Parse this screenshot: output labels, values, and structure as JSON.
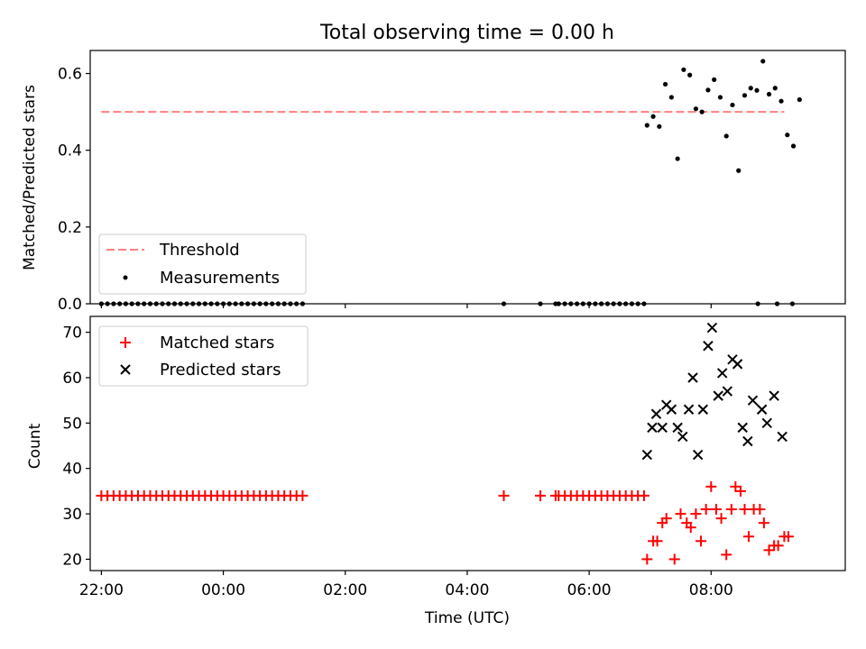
{
  "figure_title": "Total observing time = 0.00 h",
  "xlabel": "Time (UTC)",
  "chart_data": [
    {
      "type": "scatter",
      "title": "Total observing time = 0.00 h",
      "xlabel": "",
      "ylabel": "Matched/Predicted stars",
      "xlim": [
        "21:49",
        "10:12"
      ],
      "ylim": [
        0,
        0.66
      ],
      "yticks": [
        0.0,
        0.2,
        0.4,
        0.6
      ],
      "ytick_labels": [
        "0.0",
        "0.2",
        "0.4",
        "0.6"
      ],
      "xticks": [
        "22:00",
        "00:00",
        "02:00",
        "04:00",
        "06:00",
        "08:00"
      ],
      "grid": false,
      "legend_position": "lower-left",
      "legend": [
        {
          "label": "Threshold",
          "style": "dashed-line",
          "color": "#ff7f7f"
        },
        {
          "label": "Measurements",
          "style": "dot",
          "color": "#000000"
        }
      ],
      "threshold": {
        "value": 0.5,
        "x_start": "22:00",
        "x_end": "09:12",
        "color": "#ff7f7f"
      },
      "series": [
        {
          "name": "Measurements",
          "color": "#000000",
          "points": [
            [
              "22:00",
              0
            ],
            [
              "22:06",
              0
            ],
            [
              "22:12",
              0
            ],
            [
              "22:18",
              0
            ],
            [
              "22:24",
              0
            ],
            [
              "22:30",
              0
            ],
            [
              "22:36",
              0
            ],
            [
              "22:42",
              0
            ],
            [
              "22:48",
              0
            ],
            [
              "22:54",
              0
            ],
            [
              "23:00",
              0
            ],
            [
              "23:06",
              0
            ],
            [
              "23:12",
              0
            ],
            [
              "23:18",
              0
            ],
            [
              "23:24",
              0
            ],
            [
              "23:30",
              0
            ],
            [
              "23:36",
              0
            ],
            [
              "23:42",
              0
            ],
            [
              "23:48",
              0
            ],
            [
              "23:54",
              0
            ],
            [
              "00:00",
              0
            ],
            [
              "00:06",
              0
            ],
            [
              "00:12",
              0
            ],
            [
              "00:18",
              0
            ],
            [
              "00:24",
              0
            ],
            [
              "00:30",
              0
            ],
            [
              "00:36",
              0
            ],
            [
              "00:42",
              0
            ],
            [
              "00:48",
              0
            ],
            [
              "00:54",
              0
            ],
            [
              "01:00",
              0
            ],
            [
              "01:06",
              0
            ],
            [
              "01:12",
              0
            ],
            [
              "01:18",
              0
            ],
            [
              "04:36",
              0
            ],
            [
              "05:12",
              0
            ],
            [
              "05:27",
              0
            ],
            [
              "05:30",
              0
            ],
            [
              "05:36",
              0
            ],
            [
              "05:42",
              0
            ],
            [
              "05:48",
              0
            ],
            [
              "05:54",
              0
            ],
            [
              "06:00",
              0
            ],
            [
              "06:06",
              0
            ],
            [
              "06:12",
              0
            ],
            [
              "06:18",
              0
            ],
            [
              "06:24",
              0
            ],
            [
              "06:30",
              0
            ],
            [
              "06:36",
              0
            ],
            [
              "06:42",
              0
            ],
            [
              "06:48",
              0
            ],
            [
              "06:54",
              0
            ],
            [
              "06:57",
              0.465
            ],
            [
              "07:03",
              0.488
            ],
            [
              "07:09",
              0.462
            ],
            [
              "07:15",
              0.572
            ],
            [
              "07:21",
              0.538
            ],
            [
              "07:27",
              0.378
            ],
            [
              "07:33",
              0.61
            ],
            [
              "07:39",
              0.596
            ],
            [
              "07:45",
              0.508
            ],
            [
              "07:51",
              0.5
            ],
            [
              "07:57",
              0.557
            ],
            [
              "08:03",
              0.584
            ],
            [
              "08:09",
              0.538
            ],
            [
              "08:15",
              0.437
            ],
            [
              "08:21",
              0.518
            ],
            [
              "08:27",
              0.347
            ],
            [
              "08:33",
              0.543
            ],
            [
              "08:39",
              0.562
            ],
            [
              "08:45",
              0.556
            ],
            [
              "08:51",
              0.632
            ],
            [
              "08:57",
              0.546
            ],
            [
              "09:03",
              0.562
            ],
            [
              "09:09",
              0.528
            ],
            [
              "09:15",
              0.44
            ],
            [
              "09:21",
              0.411
            ],
            [
              "09:27",
              0.532
            ],
            [
              "08:46",
              0
            ],
            [
              "09:05",
              0
            ],
            [
              "09:20",
              0
            ]
          ]
        }
      ]
    },
    {
      "type": "scatter",
      "xlabel": "Time (UTC)",
      "ylabel": "Count",
      "xlim": [
        "21:49",
        "10:12"
      ],
      "ylim": [
        17.5,
        73.5
      ],
      "yticks": [
        20,
        30,
        40,
        50,
        60,
        70
      ],
      "ytick_labels": [
        "20",
        "30",
        "40",
        "50",
        "60",
        "70"
      ],
      "xticks": [
        "22:00",
        "00:00",
        "02:00",
        "04:00",
        "06:00",
        "08:00"
      ],
      "xtick_labels": [
        "22:00",
        "00:00",
        "02:00",
        "04:00",
        "06:00",
        "08:00"
      ],
      "grid": false,
      "legend_position": "upper-left",
      "legend": [
        {
          "label": "Matched stars",
          "style": "plus",
          "color": "#ff0000"
        },
        {
          "label": "Predicted stars",
          "style": "x",
          "color": "#000000"
        }
      ],
      "series": [
        {
          "name": "Matched stars",
          "marker": "plus",
          "color": "#ff0000",
          "points": [
            [
              "22:00",
              34
            ],
            [
              "22:06",
              34
            ],
            [
              "22:12",
              34
            ],
            [
              "22:18",
              34
            ],
            [
              "22:24",
              34
            ],
            [
              "22:30",
              34
            ],
            [
              "22:36",
              34
            ],
            [
              "22:42",
              34
            ],
            [
              "22:48",
              34
            ],
            [
              "22:54",
              34
            ],
            [
              "23:00",
              34
            ],
            [
              "23:06",
              34
            ],
            [
              "23:12",
              34
            ],
            [
              "23:18",
              34
            ],
            [
              "23:24",
              34
            ],
            [
              "23:30",
              34
            ],
            [
              "23:36",
              34
            ],
            [
              "23:42",
              34
            ],
            [
              "23:48",
              34
            ],
            [
              "23:54",
              34
            ],
            [
              "00:00",
              34
            ],
            [
              "00:06",
              34
            ],
            [
              "00:12",
              34
            ],
            [
              "00:18",
              34
            ],
            [
              "00:24",
              34
            ],
            [
              "00:30",
              34
            ],
            [
              "00:36",
              34
            ],
            [
              "00:42",
              34
            ],
            [
              "00:48",
              34
            ],
            [
              "00:54",
              34
            ],
            [
              "01:00",
              34
            ],
            [
              "01:06",
              34
            ],
            [
              "01:12",
              34
            ],
            [
              "01:18",
              34
            ],
            [
              "04:36",
              34
            ],
            [
              "05:12",
              34
            ],
            [
              "05:27",
              34
            ],
            [
              "05:30",
              34
            ],
            [
              "05:36",
              34
            ],
            [
              "05:42",
              34
            ],
            [
              "05:48",
              34
            ],
            [
              "05:54",
              34
            ],
            [
              "06:00",
              34
            ],
            [
              "06:06",
              34
            ],
            [
              "06:12",
              34
            ],
            [
              "06:18",
              34
            ],
            [
              "06:24",
              34
            ],
            [
              "06:30",
              34
            ],
            [
              "06:36",
              34
            ],
            [
              "06:42",
              34
            ],
            [
              "06:48",
              34
            ],
            [
              "06:54",
              34
            ],
            [
              "06:57",
              20
            ],
            [
              "07:03",
              24
            ],
            [
              "07:07",
              24
            ],
            [
              "07:12",
              28
            ],
            [
              "07:16",
              29
            ],
            [
              "07:24",
              20
            ],
            [
              "07:30",
              30
            ],
            [
              "07:36",
              28
            ],
            [
              "07:40",
              27
            ],
            [
              "07:45",
              30
            ],
            [
              "07:50",
              24
            ],
            [
              "07:55",
              31
            ],
            [
              "08:00",
              36
            ],
            [
              "08:05",
              31
            ],
            [
              "08:10",
              29
            ],
            [
              "08:15",
              21
            ],
            [
              "08:20",
              31
            ],
            [
              "08:24",
              36
            ],
            [
              "08:29",
              35
            ],
            [
              "08:33",
              31
            ],
            [
              "08:37",
              25
            ],
            [
              "08:42",
              31
            ],
            [
              "08:48",
              31
            ],
            [
              "08:52",
              28
            ],
            [
              "08:57",
              22
            ],
            [
              "09:02",
              23
            ],
            [
              "09:06",
              23
            ],
            [
              "09:12",
              25
            ],
            [
              "09:16",
              25
            ]
          ]
        },
        {
          "name": "Predicted stars",
          "marker": "x",
          "color": "#000000",
          "points": [
            [
              "06:57",
              43
            ],
            [
              "07:02",
              49
            ],
            [
              "07:06",
              52
            ],
            [
              "07:12",
              49
            ],
            [
              "07:16",
              54
            ],
            [
              "07:21",
              53
            ],
            [
              "07:27",
              49
            ],
            [
              "07:32",
              47
            ],
            [
              "07:38",
              53
            ],
            [
              "07:42",
              60
            ],
            [
              "07:47",
              43
            ],
            [
              "07:52",
              53
            ],
            [
              "07:57",
              67
            ],
            [
              "08:01",
              71
            ],
            [
              "08:07",
              56
            ],
            [
              "08:11",
              61
            ],
            [
              "08:16",
              57
            ],
            [
              "08:21",
              64
            ],
            [
              "08:26",
              63
            ],
            [
              "08:31",
              49
            ],
            [
              "08:36",
              46
            ],
            [
              "08:41",
              55
            ],
            [
              "08:50",
              53
            ],
            [
              "08:55",
              50
            ],
            [
              "09:02",
              56
            ],
            [
              "09:10",
              47
            ]
          ]
        }
      ]
    }
  ]
}
